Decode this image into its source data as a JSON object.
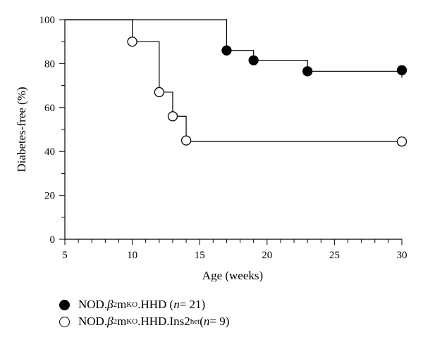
{
  "chart_data": {
    "type": "line",
    "title": "",
    "xlabel": "Age (weeks)",
    "ylabel": "Diabetes-free (%)",
    "xlim": [
      5,
      30
    ],
    "ylim": [
      0,
      100
    ],
    "x_ticks": [
      5,
      10,
      15,
      20,
      25,
      30
    ],
    "y_ticks": [
      0,
      20,
      40,
      60,
      80,
      100
    ],
    "grid": false,
    "legend_position": "bottom-left",
    "series": [
      {
        "name": "NOD.β2mKO.HHD (n = 21)",
        "marker": "filled-circle",
        "color": "#000000",
        "steps": [
          [
            5,
            100
          ],
          [
            17,
            86
          ],
          [
            19,
            81.5
          ],
          [
            23,
            76.5
          ],
          [
            30,
            76.5
          ]
        ],
        "events": [
          [
            17,
            86
          ],
          [
            19,
            81.5
          ],
          [
            23,
            76.5
          ],
          [
            30,
            77
          ]
        ],
        "censor_ticks": [
          [
            30,
            76.5
          ]
        ]
      },
      {
        "name": "NOD.β2mKO.HHD.Ins2het (n = 9)",
        "marker": "open-circle",
        "color": "#000000",
        "steps": [
          [
            5,
            100
          ],
          [
            10,
            90
          ],
          [
            12,
            67
          ],
          [
            13,
            56
          ],
          [
            14,
            44.5
          ],
          [
            30,
            44.5
          ]
        ],
        "events": [
          [
            10,
            90
          ],
          [
            12,
            67
          ],
          [
            13,
            56
          ],
          [
            14,
            45
          ],
          [
            30,
            44.5
          ]
        ],
        "censor_ticks": []
      }
    ]
  },
  "legend": {
    "item1": {
      "pre": "NOD.",
      "beta": "β",
      "sub": "2",
      "m": "m",
      "sup1": "KO",
      "post": ".HHD (",
      "n": "n",
      "count": " = 21)"
    },
    "item2": {
      "pre": "NOD.",
      "beta": "β",
      "sub": "2",
      "m": "m",
      "sup1": "KO",
      "post": ".HHD.Ins2",
      "sup2": "het",
      "post2": " (",
      "n": "n",
      "count": " = 9)"
    }
  }
}
